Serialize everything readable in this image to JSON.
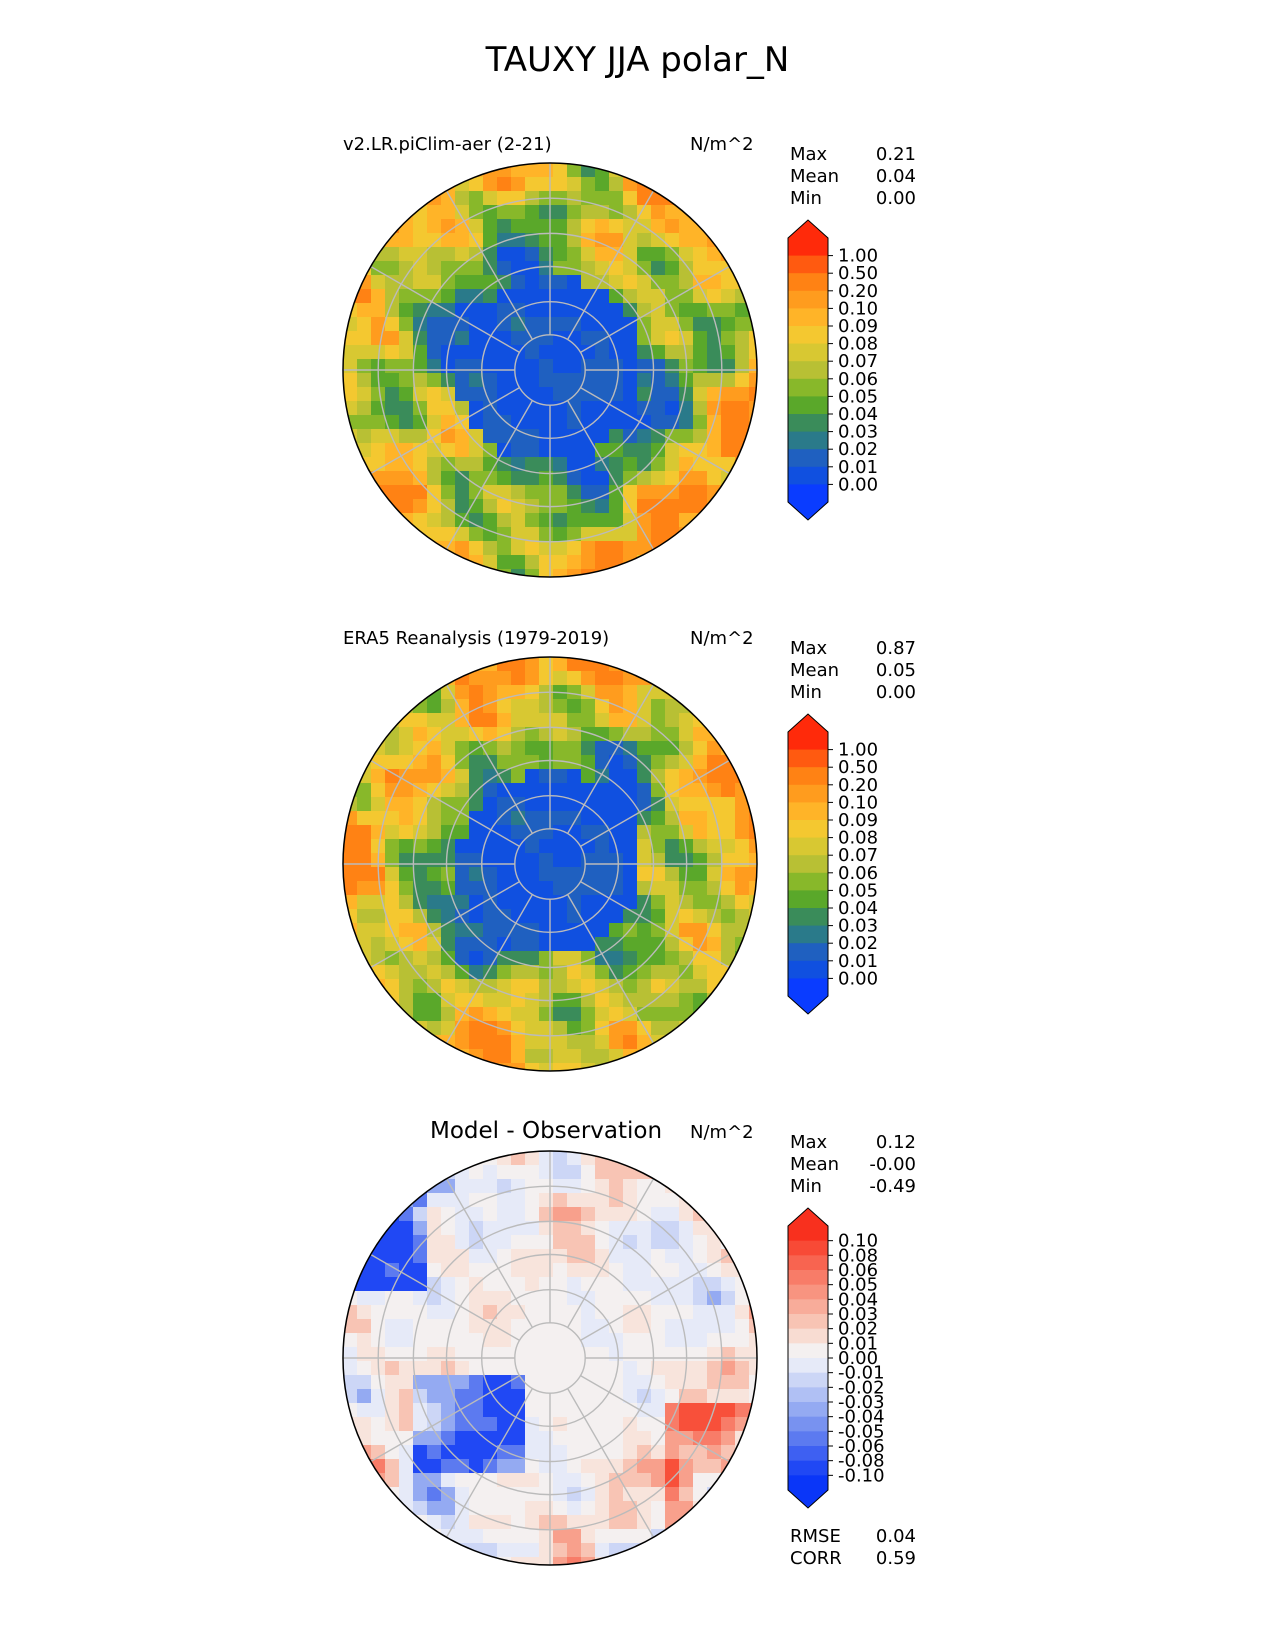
{
  "title": "TAUXY JJA polar_N",
  "panels": [
    {
      "id": "model",
      "title": "v2.LR.piClim-aer (2-21)",
      "units": "N/m^2",
      "stats": [
        {
          "label": "Max",
          "value": "0.21"
        },
        {
          "label": "Mean",
          "value": "0.04"
        },
        {
          "label": "Min",
          "value": "0.00"
        }
      ],
      "colorbar": {
        "levels": [
          "1.00",
          "0.50",
          "0.20",
          "0.10",
          "0.09",
          "0.08",
          "0.07",
          "0.06",
          "0.05",
          "0.04",
          "0.03",
          "0.02",
          "0.01",
          "0.00"
        ],
        "colors": [
          "#ff2a0a",
          "#ff5a10",
          "#ff8214",
          "#ff9c1e",
          "#ffb428",
          "#f4c830",
          "#d8c832",
          "#b8c034",
          "#88b82a",
          "#5aa82a",
          "#3a8c5a",
          "#2a7a8a",
          "#1f60c0",
          "#1050e0",
          "#0a3cff"
        ],
        "extend_top": "#ff2a0a",
        "extend_bottom": "#0a3cff"
      }
    },
    {
      "id": "obs",
      "title": "ERA5 Reanalysis (1979-2019)",
      "units": "N/m^2",
      "stats": [
        {
          "label": "Max",
          "value": "0.87"
        },
        {
          "label": "Mean",
          "value": "0.05"
        },
        {
          "label": "Min",
          "value": "0.00"
        }
      ],
      "colorbar": {
        "levels": [
          "1.00",
          "0.50",
          "0.20",
          "0.10",
          "0.09",
          "0.08",
          "0.07",
          "0.06",
          "0.05",
          "0.04",
          "0.03",
          "0.02",
          "0.01",
          "0.00"
        ],
        "colors": [
          "#ff2a0a",
          "#ff5a10",
          "#ff8214",
          "#ff9c1e",
          "#ffb428",
          "#f4c830",
          "#d8c832",
          "#b8c034",
          "#88b82a",
          "#5aa82a",
          "#3a8c5a",
          "#2a7a8a",
          "#1f60c0",
          "#1050e0",
          "#0a3cff"
        ],
        "extend_top": "#ff2a0a",
        "extend_bottom": "#0a3cff"
      }
    },
    {
      "id": "diff",
      "title": "Model - Observation",
      "units": "N/m^2",
      "stats": [
        {
          "label": "Max",
          "value": "0.12"
        },
        {
          "label": "Mean",
          "value": "-0.00"
        },
        {
          "label": "Min",
          "value": "-0.49"
        }
      ],
      "extra_stats": [
        {
          "label": "RMSE",
          "value": "0.04"
        },
        {
          "label": "CORR",
          "value": "0.59"
        }
      ],
      "colorbar": {
        "levels": [
          "0.10",
          "0.08",
          "0.06",
          "0.05",
          "0.04",
          "0.03",
          "0.02",
          "0.01",
          "0.00",
          "-0.01",
          "-0.02",
          "-0.03",
          "-0.04",
          "-0.05",
          "-0.06",
          "-0.08",
          "-0.10"
        ],
        "colors": [
          "#f8301e",
          "#f84a36",
          "#f86450",
          "#f87c68",
          "#f89480",
          "#f8ac9a",
          "#f8c4b4",
          "#f8dcd2",
          "#f4f0f0",
          "#e6eaf8",
          "#ccd6f6",
          "#b0c0f4",
          "#94aaf2",
          "#7892f0",
          "#5c7af0",
          "#3e60f2",
          "#2048f4",
          "#0a36f8"
        ],
        "extend_top": "#f8301e",
        "extend_bottom": "#0a36f8"
      }
    }
  ],
  "chart_data": [
    {
      "type": "heatmap",
      "projection": "north polar stereographic",
      "title": "v2.LR.piClim-aer (2-21)",
      "units": "N/m^2",
      "colorbar_levels": [
        0.0,
        0.01,
        0.02,
        0.03,
        0.04,
        0.05,
        0.06,
        0.07,
        0.08,
        0.09,
        0.1,
        0.2,
        0.5,
        1.0
      ],
      "max": 0.21,
      "mean": 0.04,
      "min": 0.0
    },
    {
      "type": "heatmap",
      "projection": "north polar stereographic",
      "title": "ERA5 Reanalysis (1979-2019)",
      "units": "N/m^2",
      "colorbar_levels": [
        0.0,
        0.01,
        0.02,
        0.03,
        0.04,
        0.05,
        0.06,
        0.07,
        0.08,
        0.09,
        0.1,
        0.2,
        0.5,
        1.0
      ],
      "max": 0.87,
      "mean": 0.05,
      "min": 0.0
    },
    {
      "type": "heatmap",
      "projection": "north polar stereographic",
      "title": "Model - Observation",
      "units": "N/m^2",
      "colorbar_levels": [
        -0.1,
        -0.08,
        -0.06,
        -0.05,
        -0.04,
        -0.03,
        -0.02,
        -0.01,
        0.0,
        0.01,
        0.02,
        0.03,
        0.04,
        0.05,
        0.06,
        0.08,
        0.1
      ],
      "max": 0.12,
      "mean": -0.0,
      "min": -0.49,
      "rmse": 0.04,
      "corr": 0.59
    }
  ]
}
